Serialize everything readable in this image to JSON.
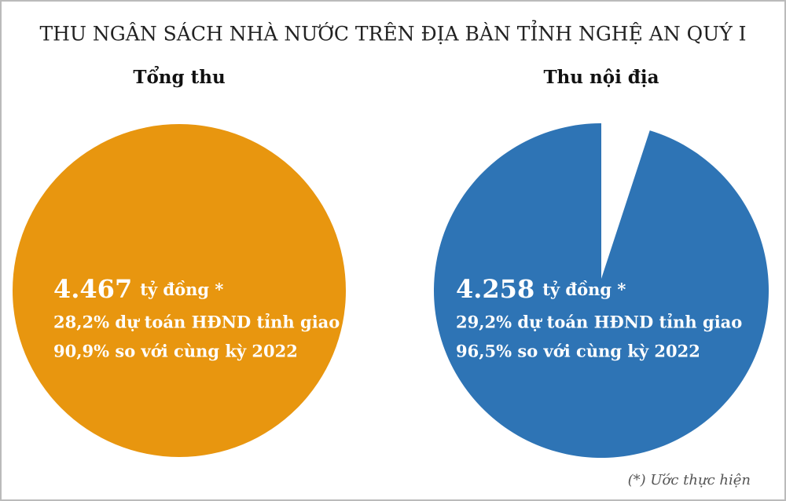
{
  "title": "THU NGÂN SÁCH NHÀ NƯỚC TRÊN ĐỊA BÀN TỈNH NGHỆ AN QUÝ I",
  "footnote": "(*) Ước thực hiện",
  "chart_data": [
    {
      "type": "pie",
      "title": "Tổng thu",
      "values": [
        4467
      ],
      "value_labels": [
        "4.467"
      ],
      "unit": "tỷ đồng *",
      "color": "#e8960f",
      "notes": [
        "28,2% dự toán HĐND tỉnh giao",
        "90,9% so với cùng kỳ 2022"
      ]
    },
    {
      "type": "pie",
      "title": "Thu nội địa",
      "values": [
        4258
      ],
      "value_labels": [
        "4.258"
      ],
      "unit": "tỷ đồng *",
      "color": "#2e74b5",
      "notes": [
        "29,2% dự toán HĐND tỉnh giao",
        "96,5% so với cùng kỳ 2022"
      ]
    }
  ]
}
